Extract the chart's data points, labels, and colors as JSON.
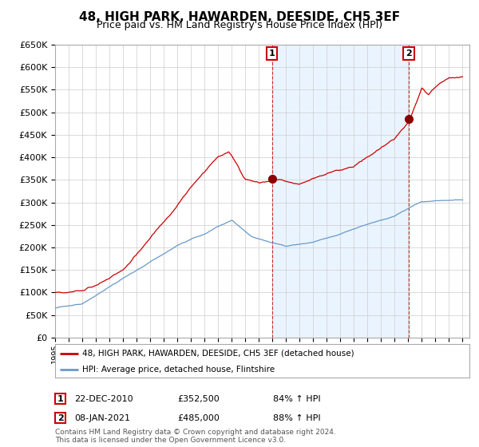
{
  "title": "48, HIGH PARK, HAWARDEN, DEESIDE, CH5 3EF",
  "subtitle": "Price paid vs. HM Land Registry's House Price Index (HPI)",
  "ytick_vals": [
    0,
    50000,
    100000,
    150000,
    200000,
    250000,
    300000,
    350000,
    400000,
    450000,
    500000,
    550000,
    600000,
    650000
  ],
  "ylim": [
    0,
    650000
  ],
  "legend_line1": "48, HIGH PARK, HAWARDEN, DEESIDE, CH5 3EF (detached house)",
  "legend_line2": "HPI: Average price, detached house, Flintshire",
  "annotation1_label": "1",
  "annotation1_date": "22-DEC-2010",
  "annotation1_price": "£352,500",
  "annotation1_hpi": "84% ↑ HPI",
  "annotation2_label": "2",
  "annotation2_date": "08-JAN-2021",
  "annotation2_price": "£485,000",
  "annotation2_hpi": "88% ↑ HPI",
  "footer1": "Contains HM Land Registry data © Crown copyright and database right 2024.",
  "footer2": "This data is licensed under the Open Government Licence v3.0.",
  "red_color": "#cc0000",
  "blue_color": "#6699cc",
  "blue_fill_color": "#ddeeff",
  "background_color": "#ffffff",
  "grid_color": "#cccccc",
  "annotation_box_color": "#cc0000",
  "sale1_x": 2010.96,
  "sale1_y": 352500,
  "sale2_x": 2021.04,
  "sale2_y": 485000,
  "xlim_start": 1995,
  "xlim_end": 2025.5
}
